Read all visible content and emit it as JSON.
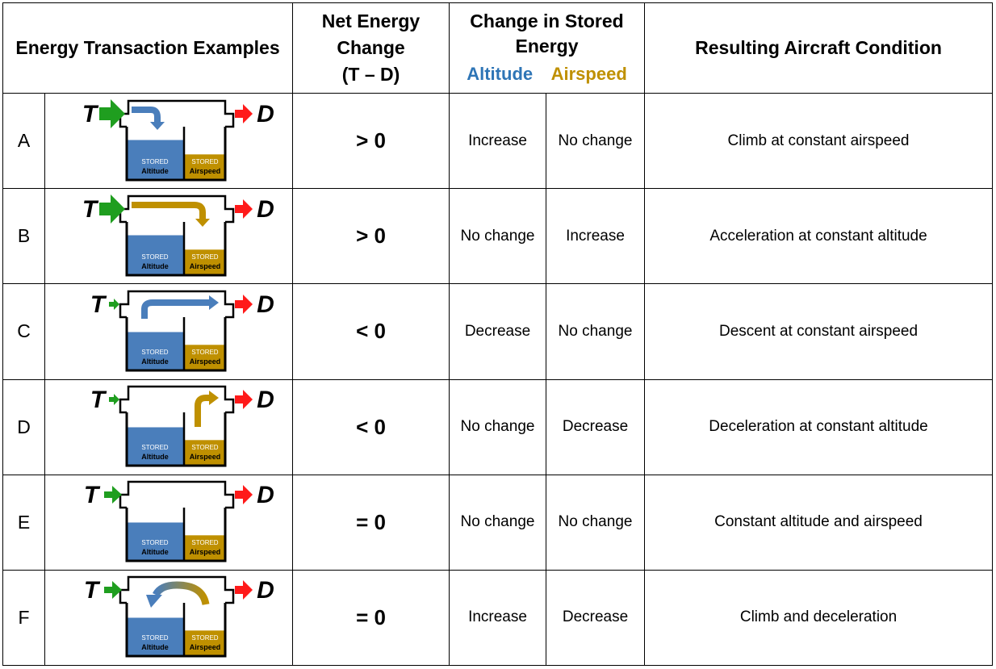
{
  "header": {
    "examples": "Energy Transaction Examples",
    "net_line1": "Net Energy",
    "net_line2": "Change",
    "net_line3": "(T – D)",
    "change_line1": "Change in Stored",
    "change_line2": "Energy",
    "altitude": "Altitude",
    "airspeed": "Airspeed",
    "condition": "Resulting Aircraft Condition"
  },
  "diagram_labels": {
    "thrust": "T",
    "drag": "D",
    "stored": "STORED",
    "altitude": "Altitude",
    "airspeed": "Airspeed"
  },
  "colors": {
    "altitude_blue": "#4a7ebb",
    "airspeed_gold": "#bf9000",
    "thrust_green": "#1f9e1f",
    "drag_red": "#ff1a1a"
  },
  "rows": [
    {
      "label": "A",
      "net": "> 0",
      "altitude": "Increase",
      "airspeed": "No change",
      "condition": "Climb at constant airspeed",
      "thrust_size": "large",
      "flow": "thrust-to-altitude",
      "alt_level": 0.75,
      "air_level": 0.48
    },
    {
      "label": "B",
      "net": "> 0",
      "altitude": "No change",
      "airspeed": "Increase",
      "condition": "Acceleration at constant altitude",
      "thrust_size": "large",
      "flow": "thrust-to-airspeed",
      "alt_level": 0.75,
      "air_level": 0.48
    },
    {
      "label": "C",
      "net": "< 0",
      "altitude": "Decrease",
      "airspeed": "No change",
      "condition": "Descent at constant airspeed",
      "thrust_size": "small",
      "flow": "altitude-to-drag",
      "alt_level": 0.72,
      "air_level": 0.48
    },
    {
      "label": "D",
      "net": "< 0",
      "altitude": "No change",
      "airspeed": "Decrease",
      "condition": "Deceleration at constant altitude",
      "thrust_size": "small",
      "flow": "airspeed-to-drag",
      "alt_level": 0.72,
      "air_level": 0.48
    },
    {
      "label": "E",
      "net": "= 0",
      "altitude": "No change",
      "airspeed": "No change",
      "condition": "Constant altitude and airspeed",
      "thrust_size": "medium",
      "flow": "none",
      "alt_level": 0.72,
      "air_level": 0.48
    },
    {
      "label": "F",
      "net": "= 0",
      "altitude": "Increase",
      "airspeed": "Decrease",
      "condition": "Climb and deceleration",
      "thrust_size": "medium",
      "flow": "airspeed-to-altitude",
      "alt_level": 0.72,
      "air_level": 0.48
    }
  ]
}
